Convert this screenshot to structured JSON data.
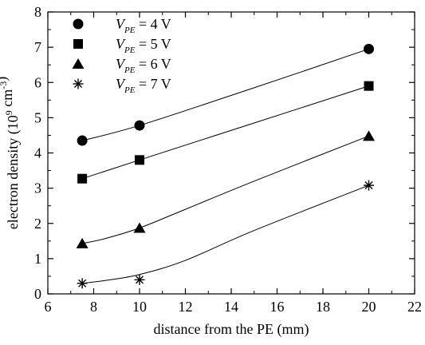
{
  "chart_data": {
    "type": "scatter",
    "xlabel": "distance from the PE (mm)",
    "ylabel_parts": {
      "main": "electron density (10",
      "exp1": "9",
      "mid": " cm",
      "exp2": "-3",
      "end": ")"
    },
    "xlim": [
      6,
      22
    ],
    "ylim": [
      0,
      8
    ],
    "xticks": [
      6,
      8,
      10,
      12,
      14,
      16,
      18,
      20,
      22
    ],
    "yticks": [
      0,
      1,
      2,
      3,
      4,
      5,
      6,
      7,
      8
    ],
    "grid": false,
    "legend_position": "top-left",
    "series": [
      {
        "label_main": "V",
        "label_sub": "PE",
        "label_rest": " = 4 V",
        "marker": "circle",
        "x": [
          7.5,
          10,
          20
        ],
        "y": [
          4.35,
          4.78,
          6.95
        ],
        "fit": [
          [
            7.5,
            4.35
          ],
          [
            10,
            4.78
          ],
          [
            15,
            5.85
          ],
          [
            20,
            6.95
          ]
        ]
      },
      {
        "label_main": "V",
        "label_sub": "PE",
        "label_rest": " = 5 V",
        "marker": "square",
        "x": [
          7.5,
          10,
          20
        ],
        "y": [
          3.27,
          3.8,
          5.9
        ],
        "fit": [
          [
            7.5,
            3.27
          ],
          [
            10,
            3.8
          ],
          [
            15,
            4.85
          ],
          [
            20,
            5.9
          ]
        ]
      },
      {
        "label_main": "V",
        "label_sub": "PE",
        "label_rest": " = 6 V",
        "marker": "triangle",
        "x": [
          7.5,
          10,
          20
        ],
        "y": [
          1.43,
          1.87,
          4.48
        ],
        "fit": [
          [
            7.5,
            1.43
          ],
          [
            8.5,
            1.57
          ],
          [
            10,
            1.87
          ],
          [
            12,
            2.4
          ],
          [
            15,
            3.2
          ],
          [
            20,
            4.48
          ]
        ]
      },
      {
        "label_main": "V",
        "label_sub": "PE",
        "label_rest": " = 7 V",
        "marker": "asterisk",
        "x": [
          7.5,
          10,
          20
        ],
        "y": [
          0.3,
          0.4,
          3.08
        ],
        "fit": [
          [
            7.5,
            0.3
          ],
          [
            8.5,
            0.38
          ],
          [
            10,
            0.55
          ],
          [
            12,
            0.95
          ],
          [
            15,
            1.8
          ],
          [
            20,
            3.08
          ]
        ]
      }
    ]
  }
}
